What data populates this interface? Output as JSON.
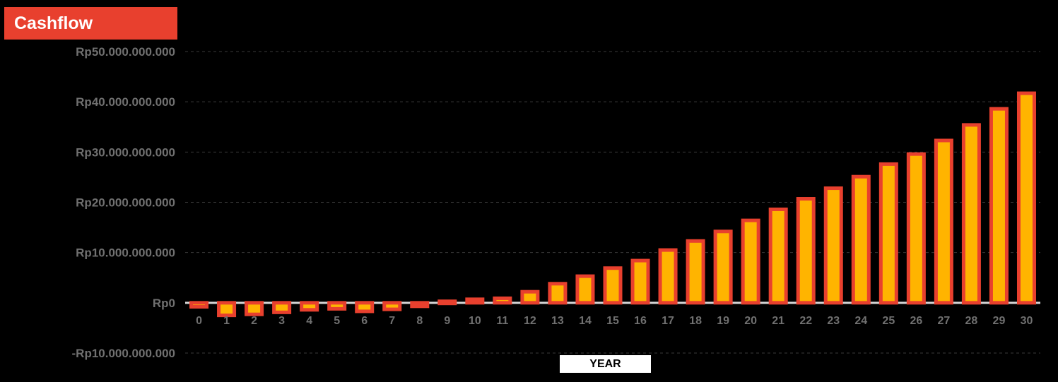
{
  "header": {
    "title": "Cashflow"
  },
  "colors": {
    "bar_fill": "#ffb400",
    "bar_stroke": "#e8402e",
    "label": "#707070",
    "background": "#000000"
  },
  "chart_data": {
    "type": "bar",
    "title": "Cashflow",
    "xlabel": "YEAR",
    "ylabel": "",
    "categories": [
      "0",
      "1",
      "2",
      "3",
      "4",
      "5",
      "6",
      "7",
      "8",
      "9",
      "10",
      "11",
      "12",
      "13",
      "14",
      "15",
      "16",
      "17",
      "18",
      "19",
      "20",
      "21",
      "22",
      "23",
      "24",
      "25",
      "26",
      "27",
      "28",
      "29",
      "30"
    ],
    "series": [
      {
        "values": [
          -800000000,
          -2500000000,
          -2300000000,
          -1900000000,
          -1400000000,
          -1200000000,
          -1700000000,
          -1300000000,
          -700000000,
          300000000,
          700000000,
          900000000,
          2200000000,
          3800000000,
          5300000000,
          6900000000,
          8400000000,
          10500000000,
          12300000000,
          14200000000,
          16400000000,
          18600000000,
          20700000000,
          22800000000,
          25100000000,
          27600000000,
          29600000000,
          32300000000,
          35400000000,
          38600000000,
          41700000000
        ]
      }
    ],
    "ylim": [
      -10000000000,
      50000000000
    ],
    "yticks": [
      {
        "value": 50000000000,
        "label": "Rp50.000.000.000"
      },
      {
        "value": 40000000000,
        "label": "Rp40.000.000.000"
      },
      {
        "value": 30000000000,
        "label": "Rp30.000.000.000"
      },
      {
        "value": 20000000000,
        "label": "Rp20.000.000.000"
      },
      {
        "value": 10000000000,
        "label": "Rp10.000.000.000"
      },
      {
        "value": 0,
        "label": "Rp0"
      },
      {
        "value": -10000000000,
        "label": "-Rp10.000.000.000"
      }
    ],
    "grid": true
  }
}
